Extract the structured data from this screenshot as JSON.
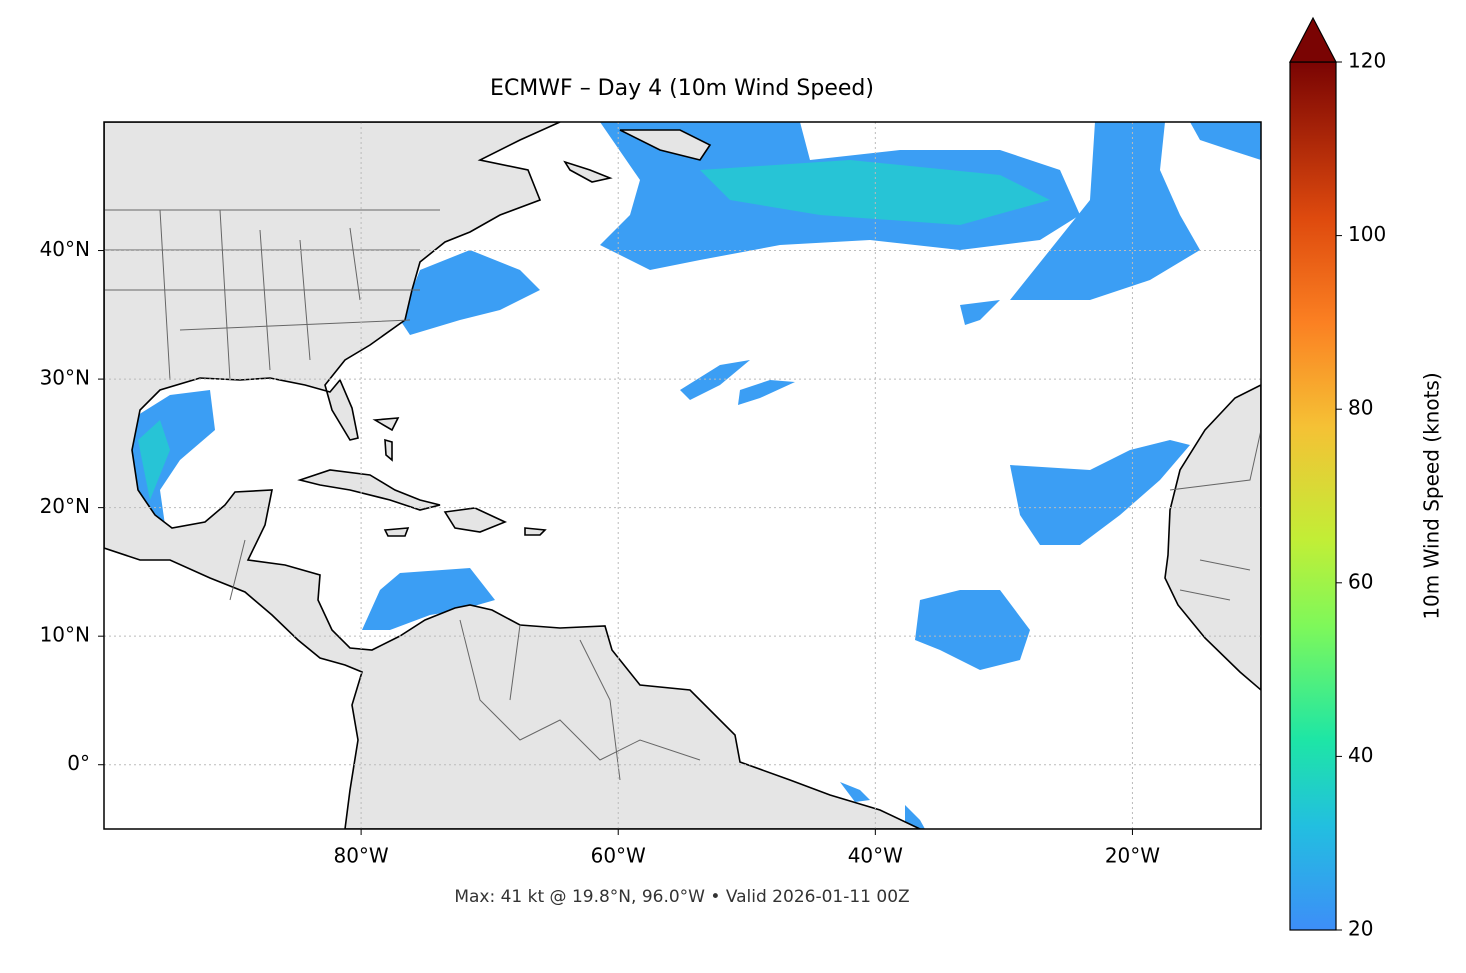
{
  "chart_data": {
    "type": "map",
    "title": "ECMWF – Day 4 (10m Wind Speed)",
    "footer": "Max: 41 kt @ 19.8°N, 96.0°W • Valid 2026-01-11 00Z",
    "xlim": [
      -100,
      -10
    ],
    "ylim": [
      -5,
      50
    ],
    "xticks": [
      {
        "value": -80,
        "label": "80°W"
      },
      {
        "value": -60,
        "label": "60°W"
      },
      {
        "value": -40,
        "label": "40°W"
      },
      {
        "value": -20,
        "label": "20°W"
      }
    ],
    "yticks": [
      {
        "value": 0,
        "label": "0°"
      },
      {
        "value": 10,
        "label": "10°N"
      },
      {
        "value": 20,
        "label": "20°N"
      },
      {
        "value": 30,
        "label": "30°N"
      },
      {
        "value": 40,
        "label": "40°N"
      }
    ],
    "grid": true,
    "colorbar": {
      "label": "10m Wind Speed (knots)",
      "lim": [
        20,
        120
      ],
      "ticks": [
        20,
        40,
        60,
        80,
        100,
        120
      ]
    }
  }
}
